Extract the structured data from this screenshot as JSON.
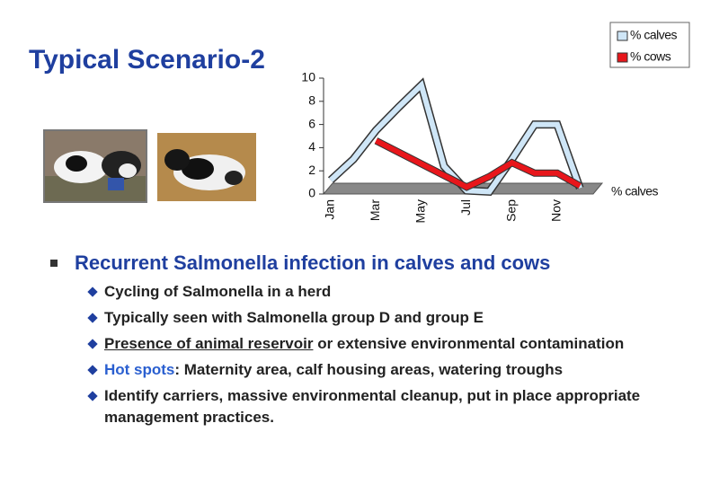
{
  "slide": {
    "title": "Typical Scenario-2",
    "bullet": "Recurrent Salmonella infection in calves and cows",
    "items": [
      "Cycling of  Salmonella in a herd",
      "Typically seen with  Salmonella group D and group E",
      [
        "Presence of animal reservoir",
        "or extensive environmental contamination"
      ],
      [
        "Hot spots",
        ": Maternity area, calf housing areas, watering troughs"
      ],
      "Identify  carriers, massive environmental cleanup, put in place appropriate  management practices."
    ]
  },
  "chart_data": {
    "type": "line",
    "categories": [
      "Jan",
      null,
      "Mar",
      null,
      "May",
      null,
      "Jul",
      null,
      "Sep",
      null,
      "Nov",
      null
    ],
    "series": [
      {
        "name": "% calves",
        "color": "#cfe6f7",
        "values": [
          1.2,
          3,
          5.5,
          7.5,
          9.4,
          2.4,
          0.3,
          0.2,
          3,
          6,
          6,
          0.5
        ]
      },
      {
        "name": "% cows",
        "color": "#e8161b",
        "values": [
          null,
          null,
          4.6,
          3.6,
          2.6,
          1.6,
          0.6,
          1.5,
          2.7,
          1.8,
          1.8,
          0.7
        ]
      }
    ],
    "depth_label": "% calves",
    "ylim": [
      0,
      10
    ],
    "yticks": [
      0,
      2,
      4,
      6,
      8,
      10
    ]
  }
}
